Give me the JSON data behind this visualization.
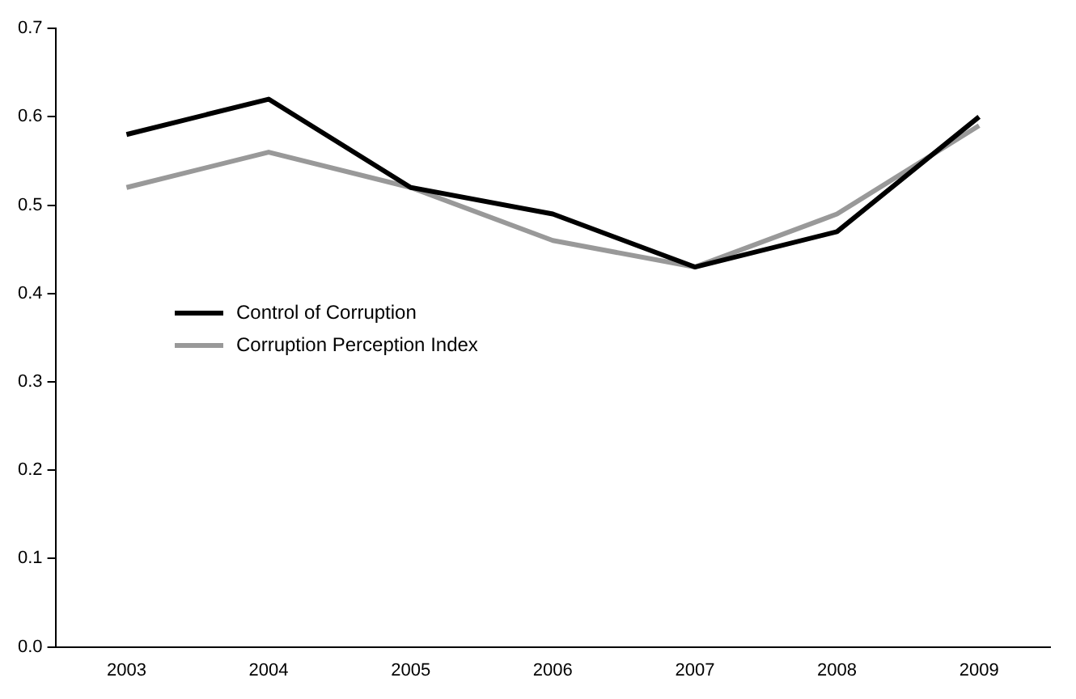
{
  "chart_data": {
    "type": "line",
    "categories": [
      "2003",
      "2004",
      "2005",
      "2006",
      "2007",
      "2008",
      "2009"
    ],
    "series": [
      {
        "name": "Control of Corruption",
        "color": "#000000",
        "values": [
          0.58,
          0.62,
          0.52,
          0.49,
          0.43,
          0.47,
          0.6
        ]
      },
      {
        "name": "Corruption Perception Index",
        "color": "#999999",
        "values": [
          0.52,
          0.56,
          0.52,
          0.46,
          0.43,
          0.49,
          0.59
        ]
      }
    ],
    "ylim": [
      0,
      0.7
    ],
    "yticks": [
      {
        "value": 0,
        "label": "0.0"
      },
      {
        "value": 0.1,
        "label": "0.1"
      },
      {
        "value": 0.2,
        "label": "0.2"
      },
      {
        "value": 0.3,
        "label": "0.3"
      },
      {
        "value": 0.4,
        "label": "0.4"
      },
      {
        "value": 0.5,
        "label": "0.5"
      },
      {
        "value": 0.6,
        "label": "0.6"
      },
      {
        "value": 0.7,
        "label": "0.7"
      }
    ],
    "grid": false,
    "legend": "left",
    "marker": "none",
    "line_style": "solid"
  }
}
